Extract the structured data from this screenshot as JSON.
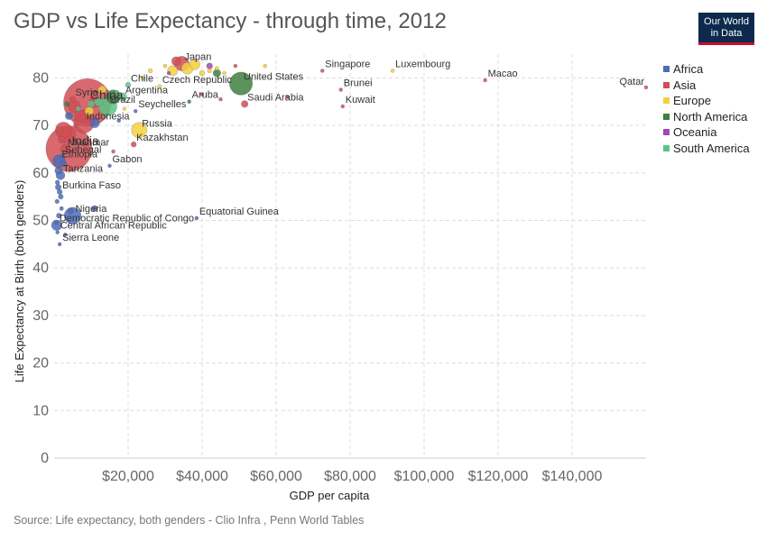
{
  "header": {
    "title": "GDP vs Life Expectancy - through time, 2012",
    "logo_line1": "Our World",
    "logo_line2": "in Data"
  },
  "footer": {
    "source": "Source: Life expectancy, both genders - Clio Infra , Penn World Tables"
  },
  "colors": {
    "Africa": "#4c6cb8",
    "Asia": "#d14f55",
    "Europe": "#f4d03f",
    "North America": "#3f7f3f",
    "Oceania": "#a14ab0",
    "South America": "#5cc386"
  },
  "chart_data": {
    "type": "scatter",
    "title": "GDP vs Life Expectancy - through time, 2012",
    "xlabel": "GDP per capita",
    "ylabel": "Life Expectancy at Birth (both genders)",
    "xlim": [
      0,
      160000
    ],
    "ylim": [
      0,
      85
    ],
    "x_ticks": [
      20000,
      40000,
      60000,
      80000,
      100000,
      120000,
      140000
    ],
    "x_tick_labels": [
      "$20,000",
      "$40,000",
      "$60,000",
      "$80,000",
      "$100,000",
      "$120,000",
      "$140,000"
    ],
    "y_ticks": [
      0,
      10,
      20,
      30,
      40,
      50,
      60,
      70,
      80
    ],
    "y_tick_labels": [
      "0",
      "10",
      "20",
      "30",
      "40",
      "50",
      "60",
      "70",
      "80"
    ],
    "grid": true,
    "legend_position": "right",
    "legend": [
      "Africa",
      "Asia",
      "Europe",
      "North America",
      "Oceania",
      "South America"
    ],
    "points": [
      {
        "label": "China",
        "x": 9000,
        "y": 74.8,
        "group": "Asia",
        "size": 1350
      },
      {
        "label": "India",
        "x": 4000,
        "y": 65.1,
        "group": "Asia",
        "size": 1250
      },
      {
        "label": "United States",
        "x": 50500,
        "y": 78.8,
        "group": "North America",
        "size": 314
      },
      {
        "label": "Japan",
        "x": 34500,
        "y": 83.0,
        "group": "Asia",
        "size": 127
      },
      {
        "label": "Chile",
        "x": 20000,
        "y": 78.5,
        "group": "South America",
        "size": 17
      },
      {
        "label": "Czech Republic",
        "x": 28500,
        "y": 78.2,
        "group": "Europe",
        "size": 10
      },
      {
        "label": "Argentina",
        "x": 18500,
        "y": 76.0,
        "group": "South America",
        "size": 41
      },
      {
        "label": "Syria",
        "x": 5000,
        "y": 75.5,
        "group": "Asia",
        "size": 22
      },
      {
        "label": "Brazil",
        "x": 14500,
        "y": 74.0,
        "group": "South America",
        "size": 199
      },
      {
        "label": "Aruba",
        "x": 36500,
        "y": 75.0,
        "group": "North America",
        "size": 0.1
      },
      {
        "label": "Seychelles",
        "x": 22000,
        "y": 73.0,
        "group": "Africa",
        "size": 0.1
      },
      {
        "label": "Indonesia",
        "x": 8000,
        "y": 70.5,
        "group": "Asia",
        "size": 247
      },
      {
        "label": "Russia",
        "x": 23000,
        "y": 69.0,
        "group": "Europe",
        "size": 143
      },
      {
        "label": "Kazakhstan",
        "x": 21500,
        "y": 66.0,
        "group": "Asia",
        "size": 17
      },
      {
        "label": "Myanmar",
        "x": 3000,
        "y": 65.0,
        "group": "Asia",
        "size": 53
      },
      {
        "label": "Senegal",
        "x": 2200,
        "y": 63.5,
        "group": "Africa",
        "size": 13
      },
      {
        "label": "Gabon",
        "x": 15000,
        "y": 61.5,
        "group": "Africa",
        "size": 1.6
      },
      {
        "label": "Ethiopia",
        "x": 1300,
        "y": 62.5,
        "group": "Africa",
        "size": 92
      },
      {
        "label": "Tanzania",
        "x": 1700,
        "y": 59.5,
        "group": "Africa",
        "size": 48
      },
      {
        "label": "Burkina Faso",
        "x": 1500,
        "y": 56.0,
        "group": "Africa",
        "size": 16
      },
      {
        "label": "Nigeria",
        "x": 5000,
        "y": 51.0,
        "group": "Africa",
        "size": 168
      },
      {
        "label": "Democratic Republic of Congo",
        "x": 700,
        "y": 49.0,
        "group": "Africa",
        "size": 66
      },
      {
        "label": "Equatorial Guinea",
        "x": 38500,
        "y": 50.5,
        "group": "Africa",
        "size": 0.7
      },
      {
        "label": "Central African Republic",
        "x": 900,
        "y": 47.5,
        "group": "Africa",
        "size": 4.5
      },
      {
        "label": "Sierra Leone",
        "x": 1500,
        "y": 45.0,
        "group": "Africa",
        "size": 6
      },
      {
        "label": "Singapore",
        "x": 72500,
        "y": 81.5,
        "group": "Asia",
        "size": 5.3
      },
      {
        "label": "Luxembourg",
        "x": 91500,
        "y": 81.5,
        "group": "Europe",
        "size": 0.5
      },
      {
        "label": "Macao",
        "x": 116500,
        "y": 79.5,
        "group": "Asia",
        "size": 0.6
      },
      {
        "label": "Qatar",
        "x": 160000,
        "y": 78.0,
        "group": "Asia",
        "size": 2.0
      },
      {
        "label": "Brunei",
        "x": 77500,
        "y": 77.5,
        "group": "Asia",
        "size": 0.4
      },
      {
        "label": "Saudi Arabia",
        "x": 51500,
        "y": 74.5,
        "group": "Asia",
        "size": 28
      },
      {
        "label": "Kuwait",
        "x": 78000,
        "y": 74.0,
        "group": "Asia",
        "size": 3.2
      },
      {
        "label": "",
        "x": 30000,
        "y": 82.5,
        "group": "Europe",
        "size": 8
      },
      {
        "label": "",
        "x": 32000,
        "y": 81.5,
        "group": "Europe",
        "size": 60
      },
      {
        "label": "",
        "x": 36000,
        "y": 82.0,
        "group": "Europe",
        "size": 80
      },
      {
        "label": "",
        "x": 38000,
        "y": 82.8,
        "group": "Europe",
        "size": 65
      },
      {
        "label": "",
        "x": 40000,
        "y": 81.0,
        "group": "Europe",
        "size": 17
      },
      {
        "label": "",
        "x": 42000,
        "y": 81.5,
        "group": "Europe",
        "size": 11
      },
      {
        "label": "",
        "x": 44000,
        "y": 82.0,
        "group": "Europe",
        "size": 9
      },
      {
        "label": "",
        "x": 46000,
        "y": 81.0,
        "group": "Europe",
        "size": 6
      },
      {
        "label": "",
        "x": 57000,
        "y": 82.5,
        "group": "Europe",
        "size": 5
      },
      {
        "label": "",
        "x": 26000,
        "y": 81.5,
        "group": "Europe",
        "size": 11
      },
      {
        "label": "",
        "x": 24000,
        "y": 80.0,
        "group": "Europe",
        "size": 10
      },
      {
        "label": "",
        "x": 33000,
        "y": 83.5,
        "group": "Asia",
        "size": 50
      },
      {
        "label": "",
        "x": 42000,
        "y": 82.5,
        "group": "Oceania",
        "size": 22
      },
      {
        "label": "",
        "x": 31000,
        "y": 81.0,
        "group": "Oceania",
        "size": 4.4
      },
      {
        "label": "",
        "x": 44000,
        "y": 81.0,
        "group": "North America",
        "size": 35
      },
      {
        "label": "",
        "x": 49000,
        "y": 82.5,
        "group": "Asia",
        "size": 7
      },
      {
        "label": "",
        "x": 63000,
        "y": 76.0,
        "group": "Asia",
        "size": 3
      },
      {
        "label": "",
        "x": 45000,
        "y": 75.5,
        "group": "Asia",
        "size": 1
      },
      {
        "label": "",
        "x": 40000,
        "y": 76.5,
        "group": "Asia",
        "size": 1.3
      },
      {
        "label": "",
        "x": 13000,
        "y": 77.5,
        "group": "Europe",
        "size": 38
      },
      {
        "label": "",
        "x": 17000,
        "y": 77.0,
        "group": "South America",
        "size": 3
      },
      {
        "label": "",
        "x": 16000,
        "y": 76.0,
        "group": "North America",
        "size": 117
      },
      {
        "label": "",
        "x": 12000,
        "y": 75.0,
        "group": "South America",
        "size": 47
      },
      {
        "label": "",
        "x": 11000,
        "y": 75.0,
        "group": "Asia",
        "size": 77
      },
      {
        "label": "",
        "x": 10000,
        "y": 74.5,
        "group": "South America",
        "size": 30
      },
      {
        "label": "",
        "x": 8500,
        "y": 72.0,
        "group": "Asia",
        "size": 98
      },
      {
        "label": "",
        "x": 6500,
        "y": 73.5,
        "group": "South America",
        "size": 15
      },
      {
        "label": "",
        "x": 7000,
        "y": 72.0,
        "group": "Asia",
        "size": 76
      },
      {
        "label": "",
        "x": 5500,
        "y": 74.0,
        "group": "Asia",
        "size": 88
      },
      {
        "label": "",
        "x": 3500,
        "y": 74.5,
        "group": "North America",
        "size": 15
      },
      {
        "label": "",
        "x": 9500,
        "y": 73.0,
        "group": "Europe",
        "size": 45
      },
      {
        "label": "",
        "x": 19000,
        "y": 73.5,
        "group": "Europe",
        "size": 3
      },
      {
        "label": "",
        "x": 11000,
        "y": 70.5,
        "group": "Africa",
        "size": 53
      },
      {
        "label": "",
        "x": 4000,
        "y": 72.0,
        "group": "Africa",
        "size": 33
      },
      {
        "label": "",
        "x": 2500,
        "y": 69.0,
        "group": "Asia",
        "size": 155
      },
      {
        "label": "",
        "x": 1500,
        "y": 69.0,
        "group": "Asia",
        "size": 30
      },
      {
        "label": "",
        "x": 2000,
        "y": 67.0,
        "group": "Asia",
        "size": 28
      },
      {
        "label": "",
        "x": 3500,
        "y": 68.0,
        "group": "Asia",
        "size": 180
      },
      {
        "label": "",
        "x": 6000,
        "y": 70.0,
        "group": "Asia",
        "size": 10
      },
      {
        "label": "",
        "x": 14000,
        "y": 72.0,
        "group": "South America",
        "size": 5
      },
      {
        "label": "",
        "x": 17500,
        "y": 71.0,
        "group": "Africa",
        "size": 2
      },
      {
        "label": "",
        "x": 16000,
        "y": 64.5,
        "group": "Asia",
        "size": 5
      },
      {
        "label": "",
        "x": 2500,
        "y": 62.0,
        "group": "Africa",
        "size": 25
      },
      {
        "label": "",
        "x": 1200,
        "y": 60.5,
        "group": "Africa",
        "size": 34
      },
      {
        "label": "",
        "x": 900,
        "y": 58.0,
        "group": "Africa",
        "size": 12
      },
      {
        "label": "",
        "x": 1100,
        "y": 57.0,
        "group": "Africa",
        "size": 20
      },
      {
        "label": "",
        "x": 1800,
        "y": 55.0,
        "group": "Africa",
        "size": 15
      },
      {
        "label": "",
        "x": 800,
        "y": 54.0,
        "group": "Africa",
        "size": 11
      },
      {
        "label": "",
        "x": 2000,
        "y": 52.5,
        "group": "Africa",
        "size": 10
      },
      {
        "label": "",
        "x": 4500,
        "y": 52.0,
        "group": "Africa",
        "size": 20
      },
      {
        "label": "",
        "x": 11000,
        "y": 52.5,
        "group": "Africa",
        "size": 22
      },
      {
        "label": "",
        "x": 1300,
        "y": 51.0,
        "group": "Africa",
        "size": 16
      },
      {
        "label": "",
        "x": 600,
        "y": 49.5,
        "group": "Africa",
        "size": 9
      },
      {
        "label": "",
        "x": 3000,
        "y": 47.0,
        "group": "Africa",
        "size": 8
      }
    ]
  }
}
